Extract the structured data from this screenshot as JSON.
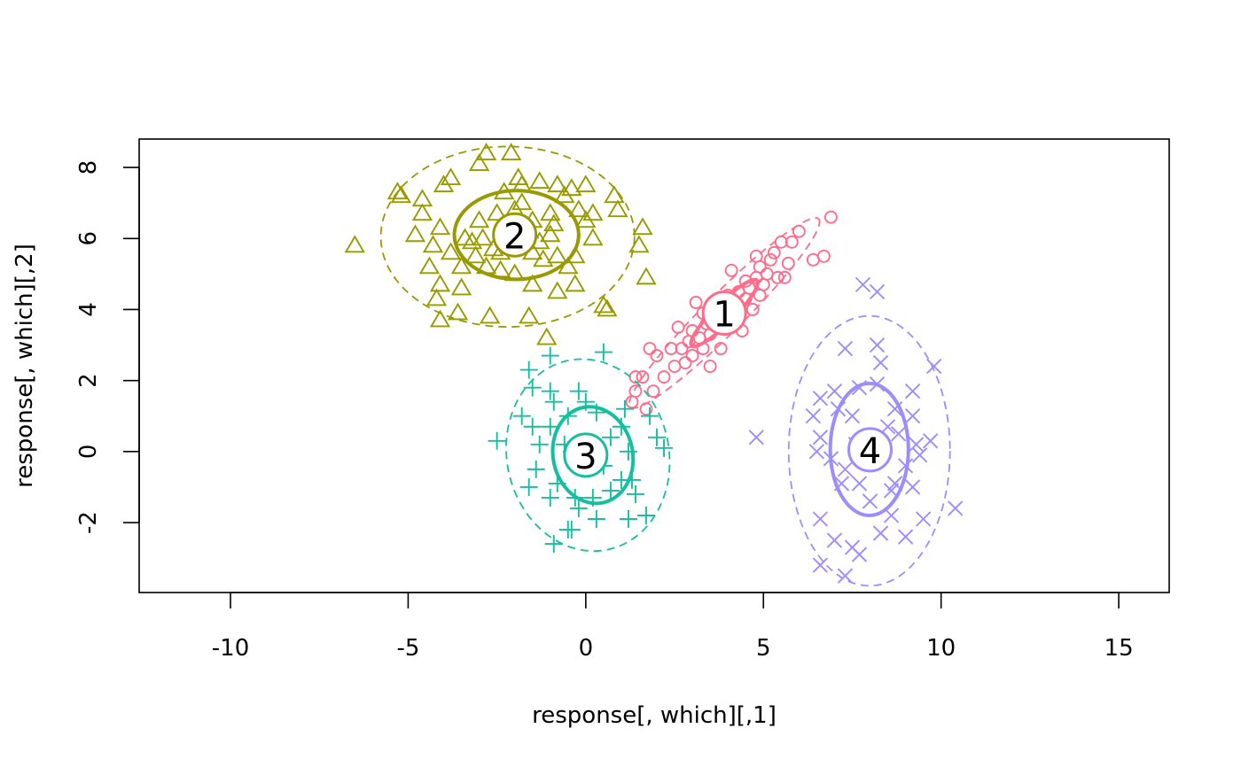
{
  "chart_data": {
    "type": "scatter",
    "title": "",
    "xlabel": "response[, which][,1]",
    "ylabel": "response[, which][,2]",
    "xlim": [
      -12.57,
      16.42
    ],
    "ylim": [
      -3.97,
      8.8
    ],
    "xticks": [
      -10,
      -5,
      0,
      5,
      10,
      15
    ],
    "yticks": [
      -2,
      0,
      2,
      4,
      6,
      8
    ],
    "grid": false,
    "legend": "none",
    "series": [
      {
        "name": "1",
        "marker": "circle",
        "color": "#FF6B8A",
        "label_at": [
          3.9,
          3.9
        ],
        "ellipse_inner": {
          "center": [
            3.9,
            3.9
          ],
          "radii": [
            1.3,
            0.28
          ],
          "angle_deg": 45
        },
        "ellipse_outer": {
          "center": [
            3.9,
            3.9
          ],
          "radii": [
            3.75,
            0.55
          ],
          "angle_deg": 45
        },
        "points": [
          [
            6.9,
            6.6
          ],
          [
            6.7,
            5.5
          ],
          [
            6.4,
            5.4
          ],
          [
            6.0,
            6.2
          ],
          [
            5.8,
            5.9
          ],
          [
            5.5,
            5.9
          ],
          [
            5.7,
            5.3
          ],
          [
            5.3,
            5.6
          ],
          [
            5.1,
            5.0
          ],
          [
            5.0,
            4.7
          ],
          [
            4.8,
            4.9
          ],
          [
            4.6,
            4.6
          ],
          [
            4.5,
            4.3
          ],
          [
            4.3,
            4.5
          ],
          [
            4.2,
            4.1
          ],
          [
            4.0,
            4.4
          ],
          [
            3.9,
            3.5
          ],
          [
            3.8,
            4.0
          ],
          [
            3.6,
            3.7
          ],
          [
            3.5,
            3.3
          ],
          [
            3.4,
            3.6
          ],
          [
            3.3,
            2.9
          ],
          [
            3.2,
            3.2
          ],
          [
            3.1,
            4.2
          ],
          [
            3.0,
            2.7
          ],
          [
            2.9,
            3.1
          ],
          [
            2.8,
            2.5
          ],
          [
            2.6,
            3.5
          ],
          [
            2.5,
            2.4
          ],
          [
            2.4,
            2.9
          ],
          [
            2.2,
            2.1
          ],
          [
            2.0,
            2.7
          ],
          [
            1.9,
            1.7
          ],
          [
            1.8,
            2.9
          ],
          [
            1.6,
            2.1
          ],
          [
            1.4,
            1.7
          ],
          [
            1.3,
            1.4
          ],
          [
            1.4,
            2.1
          ],
          [
            1.7,
            1.2
          ],
          [
            3.5,
            2.4
          ],
          [
            4.4,
            3.4
          ],
          [
            3.8,
            2.9
          ],
          [
            4.9,
            5.2
          ],
          [
            5.2,
            5.4
          ],
          [
            4.7,
            4.0
          ],
          [
            4.1,
            5.1
          ],
          [
            4.5,
            4.8
          ],
          [
            4.9,
            4.4
          ],
          [
            5.6,
            4.9
          ],
          [
            3.7,
            4.3
          ],
          [
            3.3,
            3.9
          ],
          [
            2.7,
            2.9
          ],
          [
            3.0,
            3.4
          ],
          [
            4.3,
            3.8
          ],
          [
            4.8,
            5.5
          ],
          [
            5.4,
            4.9
          ]
        ]
      },
      {
        "name": "2",
        "marker": "triangle",
        "color": "#999900",
        "label_at": [
          -2.0,
          6.1
        ],
        "ellipse_inner": {
          "center": [
            -1.95,
            6.1
          ],
          "radii": [
            1.75,
            1.25
          ],
          "angle_deg": 0
        },
        "ellipse_outer": {
          "center": [
            -2.2,
            6.05
          ],
          "radii": [
            3.57,
            2.54
          ],
          "angle_deg": 0
        },
        "points": [
          [
            -6.5,
            5.8
          ],
          [
            -5.3,
            7.3
          ],
          [
            -5.2,
            7.2
          ],
          [
            -4.6,
            6.7
          ],
          [
            -4.1,
            3.7
          ],
          [
            -4.2,
            4.3
          ],
          [
            -3.6,
            3.9
          ],
          [
            -2.7,
            3.8
          ],
          [
            -1.6,
            3.8
          ],
          [
            -1.1,
            3.2
          ],
          [
            1.6,
            6.3
          ],
          [
            1.5,
            5.8
          ],
          [
            1.7,
            4.9
          ],
          [
            0.5,
            4.1
          ],
          [
            0.6,
            4.0
          ],
          [
            0.9,
            6.8
          ],
          [
            0.8,
            7.2
          ],
          [
            0.0,
            7.5
          ],
          [
            -0.2,
            6.8
          ],
          [
            -0.8,
            7.5
          ],
          [
            -1.3,
            7.6
          ],
          [
            -2.1,
            8.4
          ],
          [
            -2.8,
            8.4
          ],
          [
            -3.0,
            8.1
          ],
          [
            -3.8,
            7.7
          ],
          [
            -4.0,
            7.5
          ],
          [
            -4.6,
            7.1
          ],
          [
            -4.1,
            6.3
          ],
          [
            -4.3,
            5.8
          ],
          [
            -4.8,
            6.1
          ],
          [
            -4.4,
            5.2
          ],
          [
            -4.1,
            4.7
          ],
          [
            -3.5,
            4.6
          ],
          [
            -3.1,
            5.5
          ],
          [
            -3.0,
            6.5
          ],
          [
            -2.5,
            6.7
          ],
          [
            -2.3,
            7.3
          ],
          [
            -1.8,
            7.0
          ],
          [
            -1.5,
            6.5
          ],
          [
            -1.0,
            6.1
          ],
          [
            -0.8,
            5.5
          ],
          [
            -0.5,
            5.2
          ],
          [
            -0.3,
            5.5
          ],
          [
            0.0,
            6.5
          ],
          [
            0.2,
            6.7
          ],
          [
            0.2,
            6.0
          ],
          [
            -0.3,
            4.7
          ],
          [
            -0.8,
            4.5
          ],
          [
            -1.5,
            4.7
          ],
          [
            -2.0,
            5.0
          ],
          [
            -2.4,
            5.1
          ],
          [
            -2.8,
            5.2
          ],
          [
            -3.5,
            5.2
          ],
          [
            -3.8,
            5.6
          ],
          [
            -3.4,
            6.0
          ],
          [
            -2.9,
            6.0
          ],
          [
            -2.6,
            5.7
          ],
          [
            -1.5,
            5.6
          ],
          [
            -1.3,
            5.9
          ],
          [
            -1.0,
            6.7
          ],
          [
            -0.6,
            7.2
          ],
          [
            -0.4,
            7.4
          ],
          [
            -1.9,
            7.7
          ],
          [
            -1.8,
            7.5
          ],
          [
            -2.4,
            5.6
          ],
          [
            -1.2,
            5.4
          ],
          [
            -2.0,
            6.8
          ],
          [
            -0.9,
            6.4
          ],
          [
            -3.2,
            5.9
          ],
          [
            -1.6,
            6.2
          ]
        ]
      },
      {
        "name": "3",
        "marker": "plus",
        "color": "#14BFA0",
        "label_at": [
          0.0,
          -0.1
        ],
        "ellipse_inner": {
          "center": [
            0.2,
            -0.1
          ],
          "radii": [
            1.12,
            1.37
          ],
          "angle_deg": 12
        },
        "ellipse_outer": {
          "center": [
            0.06,
            -0.1
          ],
          "radii": [
            2.28,
            2.72
          ],
          "angle_deg": 12
        },
        "points": [
          [
            0.5,
            2.8
          ],
          [
            -1.0,
            2.7
          ],
          [
            -1.6,
            2.3
          ],
          [
            -1.5,
            1.8
          ],
          [
            -1.8,
            1.0
          ],
          [
            -2.5,
            0.3
          ],
          [
            -1.0,
            1.7
          ],
          [
            -0.2,
            1.7
          ],
          [
            1.8,
            1.0
          ],
          [
            2.0,
            0.4
          ],
          [
            2.2,
            0.1
          ],
          [
            1.7,
            -1.8
          ],
          [
            1.2,
            -1.9
          ],
          [
            -0.9,
            -2.6
          ],
          [
            -0.4,
            -2.2
          ],
          [
            -0.5,
            -2.2
          ],
          [
            -1.6,
            -1.0
          ],
          [
            -1.4,
            -0.5
          ],
          [
            -1.3,
            0.2
          ],
          [
            -1.0,
            0.7
          ],
          [
            -0.5,
            1.0
          ],
          [
            0.3,
            1.1
          ],
          [
            1.0,
            0.7
          ],
          [
            1.2,
            0.0
          ],
          [
            1.0,
            -0.8
          ],
          [
            0.7,
            -1.1
          ],
          [
            0.2,
            -1.3
          ],
          [
            -0.3,
            -1.3
          ],
          [
            -0.8,
            -0.9
          ],
          [
            -1.0,
            -1.3
          ],
          [
            0.5,
            -0.4
          ],
          [
            -0.4,
            0.0
          ],
          [
            0.7,
            0.4
          ],
          [
            1.3,
            -0.8
          ],
          [
            1.4,
            -1.2
          ],
          [
            -0.2,
            -1.6
          ],
          [
            0.3,
            -1.9
          ],
          [
            -1.5,
            0.7
          ],
          [
            -0.6,
            0.2
          ],
          [
            -0.9,
            1.4
          ],
          [
            0.0,
            1.4
          ],
          [
            1.1,
            1.2
          ]
        ]
      },
      {
        "name": "4",
        "marker": "cross",
        "color": "#9D8CFF",
        "label_at": [
          8.0,
          0.05
        ],
        "ellipse_inner": {
          "center": [
            7.98,
            0.06
          ],
          "radii": [
            1.1,
            1.86
          ],
          "angle_deg": 0
        },
        "ellipse_outer": {
          "center": [
            7.98,
            0.02
          ],
          "radii": [
            2.27,
            3.8
          ],
          "angle_deg": 0
        },
        "points": [
          [
            7.8,
            4.7
          ],
          [
            8.2,
            4.5
          ],
          [
            7.3,
            2.9
          ],
          [
            8.2,
            3.0
          ],
          [
            8.3,
            2.5
          ],
          [
            9.8,
            2.4
          ],
          [
            9.2,
            1.7
          ],
          [
            6.6,
            1.5
          ],
          [
            7.0,
            1.7
          ],
          [
            7.7,
            1.8
          ],
          [
            8.2,
            1.9
          ],
          [
            6.4,
            1.0
          ],
          [
            6.6,
            0.4
          ],
          [
            4.8,
            0.4
          ],
          [
            6.5,
            0.0
          ],
          [
            6.9,
            -0.2
          ],
          [
            9.2,
            1.0
          ],
          [
            9.3,
            0.2
          ],
          [
            9.7,
            0.3
          ],
          [
            9.4,
            -0.1
          ],
          [
            9.0,
            -0.4
          ],
          [
            9.2,
            -1.0
          ],
          [
            8.6,
            -1.1
          ],
          [
            8.0,
            -1.4
          ],
          [
            8.6,
            -1.8
          ],
          [
            9.5,
            -1.9
          ],
          [
            10.4,
            -1.6
          ],
          [
            6.6,
            -1.9
          ],
          [
            7.0,
            -2.5
          ],
          [
            7.5,
            -2.7
          ],
          [
            7.7,
            -2.9
          ],
          [
            9.0,
            -2.4
          ],
          [
            8.3,
            -2.3
          ],
          [
            6.6,
            -3.2
          ],
          [
            7.3,
            -3.5
          ],
          [
            7.3,
            -0.5
          ],
          [
            7.5,
            1.0
          ],
          [
            7.1,
            1.2
          ],
          [
            8.7,
            1.2
          ],
          [
            8.5,
            0.7
          ],
          [
            7.2,
            -0.9
          ],
          [
            7.7,
            -0.9
          ],
          [
            8.2,
            -0.2
          ],
          [
            8.8,
            0.5
          ],
          [
            8.7,
            -0.9
          ],
          [
            7.6,
            0.2
          ]
        ]
      }
    ]
  }
}
